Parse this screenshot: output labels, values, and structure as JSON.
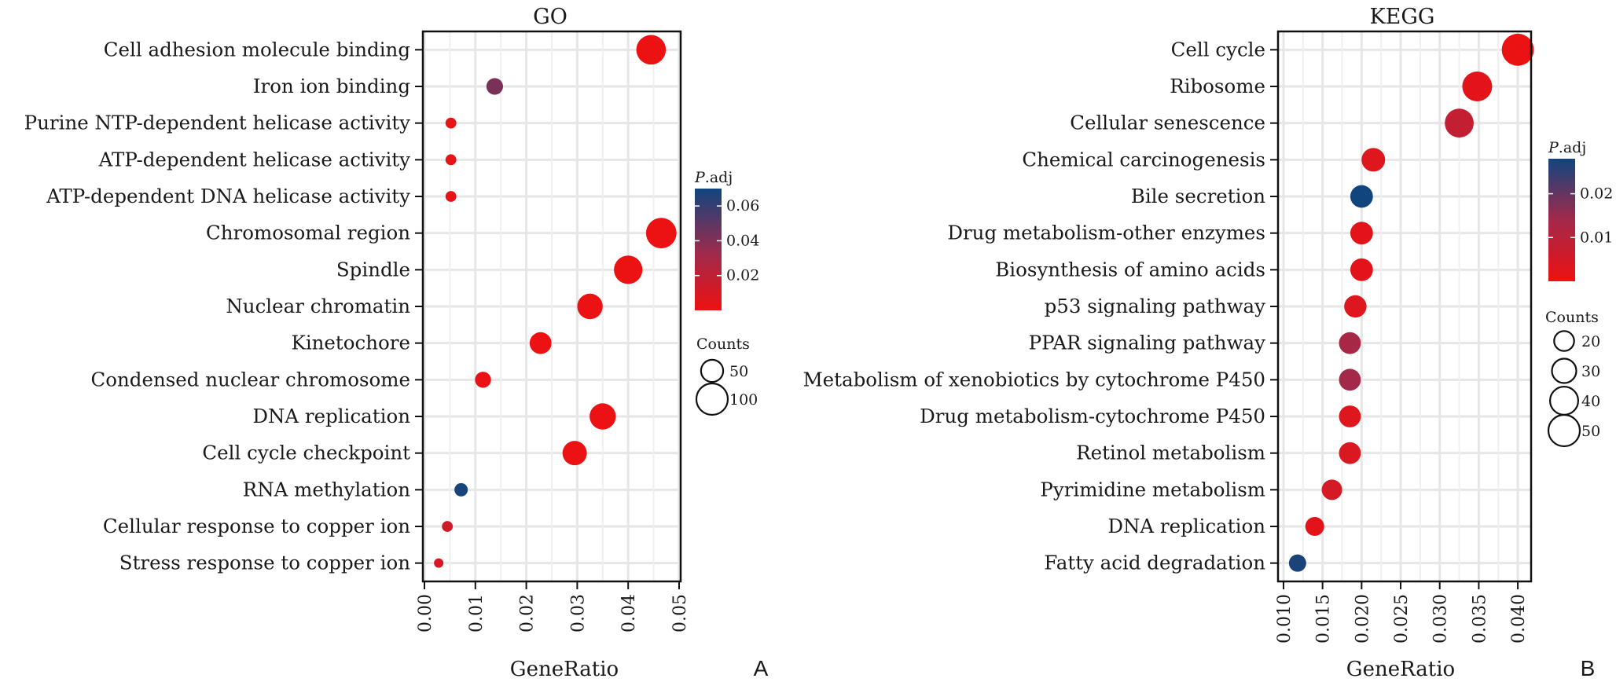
{
  "chart_data": [
    {
      "type": "scatter",
      "panel_label": "A",
      "title": "GO",
      "xlabel": "GeneRatio",
      "ylabel": "",
      "xlim": [
        0,
        0.05
      ],
      "x_ticks": [
        "0.00",
        "0.01",
        "0.02",
        "0.03",
        "0.04",
        "0.05"
      ],
      "grid": true,
      "categories": [
        "Cell adhesion molecule binding",
        "Iron ion binding",
        "Purine NTP-dependent helicase activity",
        "ATP-dependent helicase activity",
        "ATP-dependent DNA helicase activity",
        "Chromosomal region",
        "Spindle",
        "Nuclear chromatin",
        "Kinetochore",
        "Condensed nuclear chromosome",
        "DNA replication",
        "Cell cycle checkpoint",
        "RNA methylation",
        "Cellular response to copper ion",
        "Stress response to copper ion"
      ],
      "gene_ratio": [
        0.0445,
        0.0138,
        0.0052,
        0.0052,
        0.0052,
        0.0465,
        0.04,
        0.0325,
        0.0228,
        0.0115,
        0.035,
        0.0295,
        0.0072,
        0.0045,
        0.0028
      ],
      "p_adj": [
        0.001,
        0.045,
        0.003,
        0.003,
        0.003,
        0.001,
        0.001,
        0.001,
        0.001,
        0.002,
        0.001,
        0.001,
        0.068,
        0.015,
        0.012
      ],
      "counts": [
        88,
        28,
        12,
        12,
        12,
        94,
        82,
        66,
        48,
        26,
        70,
        60,
        18,
        12,
        8
      ],
      "color_legend": {
        "title_italic": "P",
        "title_rest": ".adj",
        "range": [
          0.0,
          0.07
        ],
        "ticks": [
          0.02,
          0.04,
          0.06
        ],
        "tick_labels": [
          "0.02",
          "0.04",
          "0.06"
        ],
        "low_color": "#ee1111",
        "high_color": "#10457e"
      },
      "size_legend": {
        "title": "Counts",
        "values": [
          50,
          100
        ],
        "labels": [
          "50",
          "100"
        ]
      }
    },
    {
      "type": "scatter",
      "panel_label": "B",
      "title": "KEGG",
      "xlabel": "GeneRatio",
      "ylabel": "",
      "xlim": [
        0.0095,
        0.0415
      ],
      "x_ticks": [
        "0.010",
        "0.015",
        "0.020",
        "0.025",
        "0.030",
        "0.035",
        "0.040"
      ],
      "grid": true,
      "categories": [
        "Cell cycle",
        "Ribosome",
        "Cellular senescence",
        "Chemical carcinogenesis",
        "Bile secretion",
        "Drug metabolism-other enzymes",
        "Biosynthesis of amino acids",
        "p53 signaling pathway",
        "PPAR signaling pathway ",
        "Metabolism of xenobiotics by cytochrome P450",
        "Drug metabolism-cytochrome P450",
        "Retinol metabolism",
        "Pyrimidine metabolism",
        "DNA replication",
        "Fatty acid degradation"
      ],
      "gene_ratio": [
        0.04,
        0.0348,
        0.0325,
        0.0215,
        0.02,
        0.02,
        0.02,
        0.0192,
        0.0185,
        0.0185,
        0.0185,
        0.0185,
        0.0162,
        0.014,
        0.0118
      ],
      "p_adj": [
        0.0005,
        0.002,
        0.008,
        0.003,
        0.028,
        0.002,
        0.002,
        0.003,
        0.013,
        0.014,
        0.003,
        0.004,
        0.005,
        0.002,
        0.027
      ],
      "counts": [
        52,
        45,
        42,
        28,
        26,
        26,
        26,
        25,
        24,
        24,
        24,
        24,
        21,
        18,
        15
      ],
      "color_legend": {
        "title_italic": "P",
        "title_rest": ".adj",
        "range": [
          0.0,
          0.028
        ],
        "ticks": [
          0.01,
          0.02
        ],
        "tick_labels": [
          "0.01",
          "0.02"
        ],
        "low_color": "#ee1111",
        "high_color": "#10457e"
      },
      "size_legend": {
        "title": "Counts",
        "values": [
          20,
          30,
          40,
          50
        ],
        "labels": [
          "20",
          "30",
          "40",
          "50"
        ]
      }
    }
  ]
}
